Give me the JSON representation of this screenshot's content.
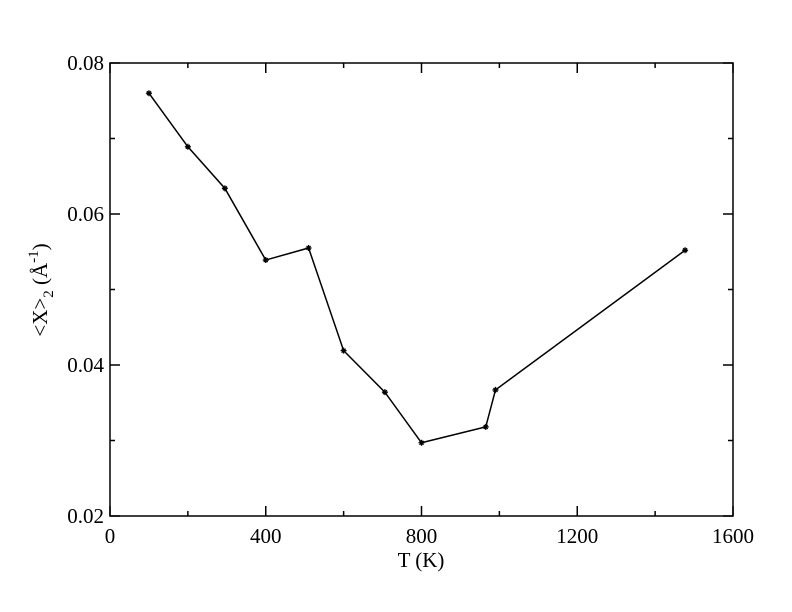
{
  "chart_data": {
    "type": "line",
    "xlabel": "T (K)",
    "ylabel": [
      "<X>",
      "2",
      " (Å",
      "-1",
      ")"
    ],
    "x": [
      100,
      200,
      295,
      400,
      510,
      600,
      706,
      800,
      965,
      990,
      1477
    ],
    "series": [
      {
        "color": "#000000",
        "values": [
          0.076,
          0.0689,
          0.0634,
          0.0539,
          0.0555,
          0.0419,
          0.0364,
          0.0297,
          0.0318,
          0.0367,
          0.0552
        ]
      }
    ],
    "xlim": [
      0,
      1600
    ],
    "xticks": [
      0,
      400,
      800,
      1200,
      1600
    ],
    "xminorticks": [
      200,
      600,
      1000,
      1400
    ],
    "ylim": [
      0.02,
      0.08
    ],
    "yticks": [
      0.02,
      0.04,
      0.06,
      0.08
    ],
    "yminorticks": [
      0.03,
      0.05,
      0.07
    ],
    "grid": false
  }
}
